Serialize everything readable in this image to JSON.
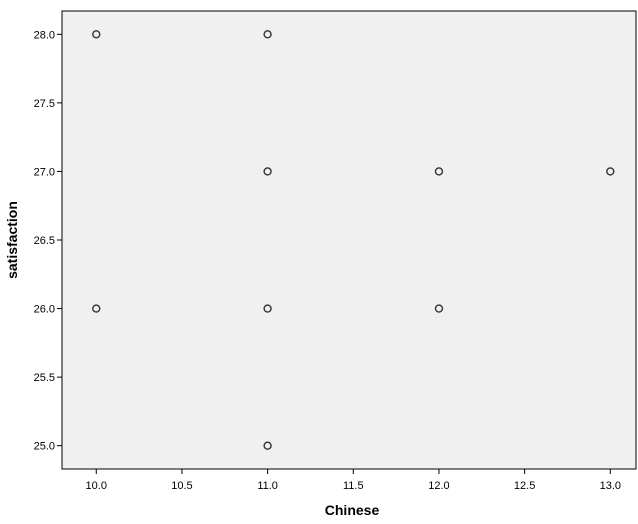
{
  "chart_data": {
    "type": "scatter",
    "title": "",
    "xlabel": "Chinese",
    "ylabel": "satisfaction",
    "xlim": [
      9.8,
      13.15
    ],
    "ylim": [
      24.83,
      28.17
    ],
    "x_ticks": [
      10.0,
      10.5,
      11.0,
      11.5,
      12.0,
      12.5,
      13.0
    ],
    "x_tick_labels": [
      "10.0",
      "10.5",
      "11.0",
      "11.5",
      "12.0",
      "12.5",
      "13.0"
    ],
    "y_ticks": [
      25.0,
      25.5,
      26.0,
      26.5,
      27.0,
      27.5,
      28.0
    ],
    "y_tick_labels": [
      "25.0",
      "25.5",
      "26.0",
      "26.5",
      "27.0",
      "27.5",
      "28.0"
    ],
    "grid": false,
    "plot_background": "#f0f0f0",
    "marker": "open-circle",
    "points": [
      {
        "x": 10.0,
        "y": 28.0
      },
      {
        "x": 11.0,
        "y": 28.0
      },
      {
        "x": 11.0,
        "y": 27.0
      },
      {
        "x": 12.0,
        "y": 27.0
      },
      {
        "x": 13.0,
        "y": 27.0
      },
      {
        "x": 10.0,
        "y": 26.0
      },
      {
        "x": 11.0,
        "y": 26.0
      },
      {
        "x": 12.0,
        "y": 26.0
      },
      {
        "x": 11.0,
        "y": 25.0
      }
    ]
  }
}
